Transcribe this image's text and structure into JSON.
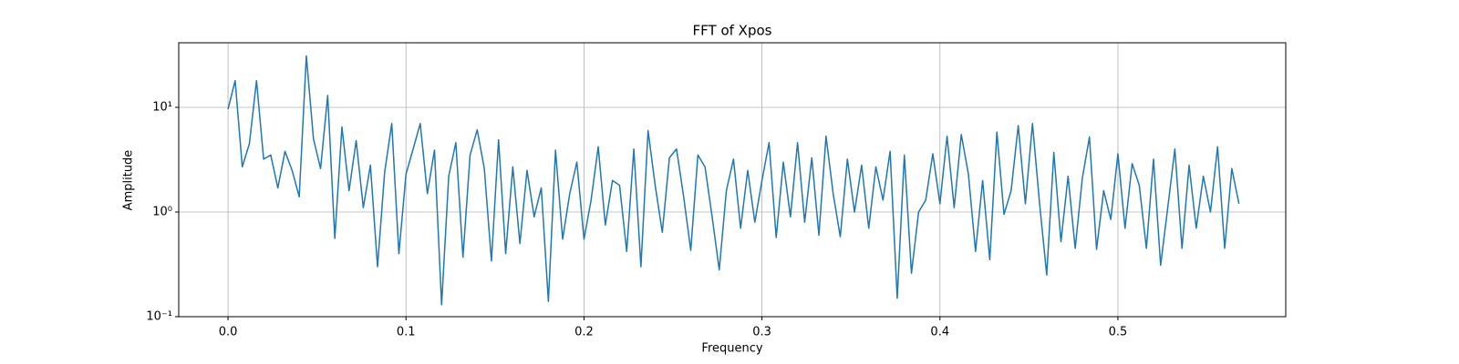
{
  "chart_data": {
    "type": "line",
    "title": "FFT of Xpos",
    "x_label": "Frequency",
    "y_label": "Amplitude",
    "yscale": "log",
    "grid": true,
    "xlim": [
      -0.0277,
      0.5943
    ],
    "ylim": [
      0.1,
      41.4
    ],
    "xticks": [
      {
        "value": 0,
        "label": "0.0"
      },
      0.1,
      0.2,
      0.3,
      0.4,
      0.5
    ],
    "yticks": [
      {
        "value": 0.1,
        "label": "10⁻¹"
      },
      {
        "value": 1,
        "label": "10⁰"
      },
      {
        "value": 10,
        "label": "10¹"
      }
    ],
    "x": [
      0,
      0.004,
      0.008,
      0.012,
      0.016,
      0.02,
      0.024,
      0.028,
      0.032,
      0.036,
      0.04,
      0.044,
      0.048,
      0.052,
      0.056,
      0.06,
      0.064,
      0.068,
      0.072,
      0.076,
      0.08,
      0.084,
      0.088,
      0.092,
      0.096,
      0.1,
      0.104,
      0.108,
      0.112,
      0.116,
      0.12,
      0.124,
      0.128,
      0.132,
      0.136,
      0.14,
      0.144,
      0.148,
      0.152,
      0.156,
      0.16,
      0.164,
      0.168,
      0.172,
      0.176,
      0.18,
      0.184,
      0.188,
      0.192,
      0.196,
      0.2,
      0.204,
      0.208,
      0.212,
      0.216,
      0.22,
      0.224,
      0.228,
      0.232,
      0.236,
      0.24,
      0.244,
      0.248,
      0.252,
      0.256,
      0.26,
      0.264,
      0.268,
      0.272,
      0.276,
      0.28,
      0.284,
      0.288,
      0.292,
      0.296,
      0.3,
      0.304,
      0.308,
      0.312,
      0.316,
      0.32,
      0.324,
      0.328,
      0.332,
      0.336,
      0.34,
      0.344,
      0.348,
      0.352,
      0.356,
      0.36,
      0.364,
      0.368,
      0.372,
      0.376,
      0.38,
      0.384,
      0.388,
      0.392,
      0.396,
      0.4,
      0.404,
      0.408,
      0.412,
      0.416,
      0.42,
      0.424,
      0.428,
      0.432,
      0.436,
      0.44,
      0.444,
      0.448,
      0.452,
      0.456,
      0.46,
      0.464,
      0.468,
      0.472,
      0.476,
      0.48,
      0.484,
      0.488,
      0.492,
      0.496,
      0.5,
      0.504,
      0.508,
      0.512,
      0.516,
      0.52,
      0.524,
      0.528,
      0.532,
      0.536,
      0.54,
      0.544,
      0.548,
      0.552,
      0.556,
      0.56,
      0.564,
      0.568
    ],
    "series": [
      {
        "color": "#1f77b4",
        "values": [
          9.6,
          18,
          2.7,
          4.5,
          18,
          3.2,
          3.5,
          1.7,
          3.8,
          2.5,
          1.4,
          31,
          5,
          2.6,
          13,
          0.56,
          6.5,
          1.6,
          4.8,
          1.1,
          2.8,
          0.3,
          2.4,
          7,
          0.4,
          2.3,
          4,
          7,
          1.5,
          3.9,
          0.13,
          2.2,
          4.6,
          0.37,
          3.5,
          6.1,
          2.6,
          0.34,
          4.9,
          0.4,
          2.7,
          0.5,
          2.5,
          0.9,
          1.7,
          0.14,
          3.9,
          0.55,
          1.5,
          3,
          0.55,
          1.3,
          4.2,
          0.75,
          2,
          1.8,
          0.42,
          4,
          0.3,
          6,
          1.8,
          0.64,
          3.3,
          4,
          1.4,
          0.43,
          3.5,
          2.7,
          0.9,
          0.28,
          1.6,
          3.2,
          0.7,
          2.5,
          0.8,
          2,
          4.6,
          0.57,
          3,
          0.9,
          4.6,
          0.8,
          3.3,
          0.6,
          5.3,
          1.5,
          0.58,
          3.2,
          1,
          2.8,
          0.7,
          2.7,
          1.3,
          3.8,
          0.15,
          3.5,
          0.26,
          1,
          1.3,
          3.6,
          1.2,
          5.3,
          1.1,
          5.5,
          2.3,
          0.42,
          2,
          0.35,
          5.8,
          0.95,
          1.6,
          6.7,
          1.2,
          7,
          1.2,
          0.25,
          3.7,
          0.52,
          2.2,
          0.45,
          2.1,
          5.2,
          0.44,
          1.6,
          0.85,
          3.6,
          0.7,
          2.9,
          1.8,
          0.45,
          3.2,
          0.31,
          1.1,
          4,
          0.45,
          2.8,
          0.7,
          2.2,
          1,
          4.2,
          0.45,
          2.6,
          1.2
        ]
      }
    ]
  }
}
